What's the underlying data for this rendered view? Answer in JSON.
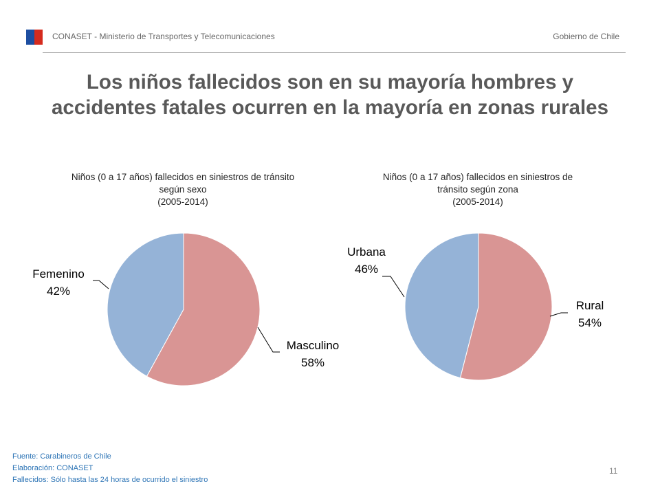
{
  "header": {
    "org_text": "CONASET - Ministerio de Transportes y Telecomunicaciones",
    "gov_text": "Gobierno de Chile",
    "flag_colors": [
      "#1d4ea1",
      "#d52b1e"
    ]
  },
  "slide_title": {
    "line1": "Los niños fallecidos son en su mayoría hombres y",
    "line2": "accidentes fatales ocurren en la mayoría en zonas rurales"
  },
  "chart_data": [
    {
      "type": "pie",
      "title_lines": [
        "Niños (0 a 17 años) fallecidos en siniestros de tránsito",
        "según sexo",
        "(2005-2014)"
      ],
      "slices": [
        {
          "label": "Masculino",
          "value": 58,
          "pct_label": "58%",
          "color": "#d99594"
        },
        {
          "label": "Femenino",
          "value": 42,
          "pct_label": "42%",
          "color": "#95b3d7"
        }
      ],
      "start": "12 o'clock, clockwise"
    },
    {
      "type": "pie",
      "title_lines": [
        "Niños (0 a 17 años) fallecidos en siniestros de",
        "tránsito según zona",
        "(2005-2014)"
      ],
      "slices": [
        {
          "label": "Rural",
          "value": 54,
          "pct_label": "54%",
          "color": "#d99594"
        },
        {
          "label": "Urbana",
          "value": 46,
          "pct_label": "46%",
          "color": "#95b3d7"
        }
      ],
      "start": "12 o'clock, clockwise"
    }
  ],
  "footer": {
    "line1": "Fuente: Carabineros de Chile",
    "line2": "Elaboración: CONASET",
    "line3": "Fallecidos: Sólo hasta las 24 horas de ocurrido el siniestro"
  },
  "page_number": "11"
}
